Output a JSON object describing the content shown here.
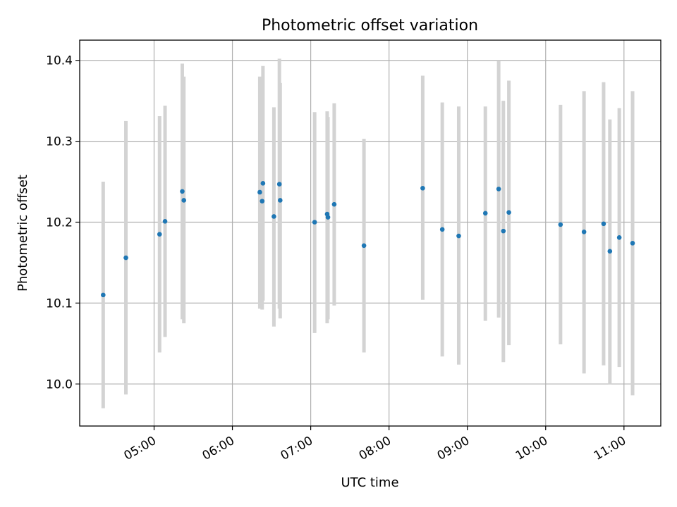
{
  "chart_data": {
    "type": "scatter",
    "title": "Photometric offset variation",
    "xlabel": "UTC time",
    "ylabel": "Photometric offset",
    "x_unit": "hours UTC",
    "xlim": [
      4.05,
      11.47
    ],
    "ylim": [
      9.948,
      10.425
    ],
    "x_ticks": [
      {
        "value": 5,
        "label": "05:00"
      },
      {
        "value": 6,
        "label": "06:00"
      },
      {
        "value": 7,
        "label": "07:00"
      },
      {
        "value": 8,
        "label": "08:00"
      },
      {
        "value": 9,
        "label": "09:00"
      },
      {
        "value": 10,
        "label": "10:00"
      },
      {
        "value": 11,
        "label": "11:00"
      }
    ],
    "y_ticks": [
      {
        "value": 10.0,
        "label": "10.0"
      },
      {
        "value": 10.1,
        "label": "10.1"
      },
      {
        "value": 10.2,
        "label": "10.2"
      },
      {
        "value": 10.3,
        "label": "10.3"
      },
      {
        "value": 10.4,
        "label": "10.4"
      }
    ],
    "grid": true,
    "point_color": "#1f77b4",
    "errorbar_color": "#d3d3d3",
    "points": [
      {
        "x": 4.35,
        "y": 10.11,
        "ylo": 9.97,
        "yhi": 10.25
      },
      {
        "x": 4.64,
        "y": 10.156,
        "ylo": 9.987,
        "yhi": 10.325
      },
      {
        "x": 5.07,
        "y": 10.185,
        "ylo": 10.039,
        "yhi": 10.331
      },
      {
        "x": 5.14,
        "y": 10.201,
        "ylo": 10.058,
        "yhi": 10.344
      },
      {
        "x": 5.36,
        "y": 10.238,
        "ylo": 10.08,
        "yhi": 10.396
      },
      {
        "x": 5.38,
        "y": 10.227,
        "ylo": 10.075,
        "yhi": 10.38
      },
      {
        "x": 6.35,
        "y": 10.237,
        "ylo": 10.093,
        "yhi": 10.38
      },
      {
        "x": 6.38,
        "y": 10.226,
        "ylo": 10.092,
        "yhi": 10.362
      },
      {
        "x": 6.39,
        "y": 10.248,
        "ylo": 10.103,
        "yhi": 10.393
      },
      {
        "x": 6.53,
        "y": 10.207,
        "ylo": 10.071,
        "yhi": 10.342
      },
      {
        "x": 6.6,
        "y": 10.247,
        "ylo": 10.093,
        "yhi": 10.402
      },
      {
        "x": 6.61,
        "y": 10.227,
        "ylo": 10.081,
        "yhi": 10.372
      },
      {
        "x": 7.05,
        "y": 10.2,
        "ylo": 10.063,
        "yhi": 10.336
      },
      {
        "x": 7.21,
        "y": 10.21,
        "ylo": 10.075,
        "yhi": 10.337
      },
      {
        "x": 7.22,
        "y": 10.206,
        "ylo": 10.08,
        "yhi": 10.33
      },
      {
        "x": 7.3,
        "y": 10.222,
        "ylo": 10.097,
        "yhi": 10.347
      },
      {
        "x": 7.68,
        "y": 10.171,
        "ylo": 10.039,
        "yhi": 10.303
      },
      {
        "x": 8.43,
        "y": 10.242,
        "ylo": 10.104,
        "yhi": 10.381
      },
      {
        "x": 8.68,
        "y": 10.191,
        "ylo": 10.034,
        "yhi": 10.348
      },
      {
        "x": 8.89,
        "y": 10.183,
        "ylo": 10.024,
        "yhi": 10.343
      },
      {
        "x": 9.23,
        "y": 10.211,
        "ylo": 10.078,
        "yhi": 10.343
      },
      {
        "x": 9.4,
        "y": 10.241,
        "ylo": 10.082,
        "yhi": 10.4
      },
      {
        "x": 9.46,
        "y": 10.189,
        "ylo": 10.027,
        "yhi": 10.35
      },
      {
        "x": 9.53,
        "y": 10.212,
        "ylo": 10.048,
        "yhi": 10.375
      },
      {
        "x": 10.19,
        "y": 10.197,
        "ylo": 10.049,
        "yhi": 10.345
      },
      {
        "x": 10.49,
        "y": 10.188,
        "ylo": 10.013,
        "yhi": 10.362
      },
      {
        "x": 10.74,
        "y": 10.198,
        "ylo": 10.023,
        "yhi": 10.373
      },
      {
        "x": 10.82,
        "y": 10.164,
        "ylo": 10.0,
        "yhi": 10.327
      },
      {
        "x": 10.94,
        "y": 10.181,
        "ylo": 10.021,
        "yhi": 10.341
      },
      {
        "x": 11.11,
        "y": 10.174,
        "ylo": 9.986,
        "yhi": 10.362
      }
    ]
  }
}
